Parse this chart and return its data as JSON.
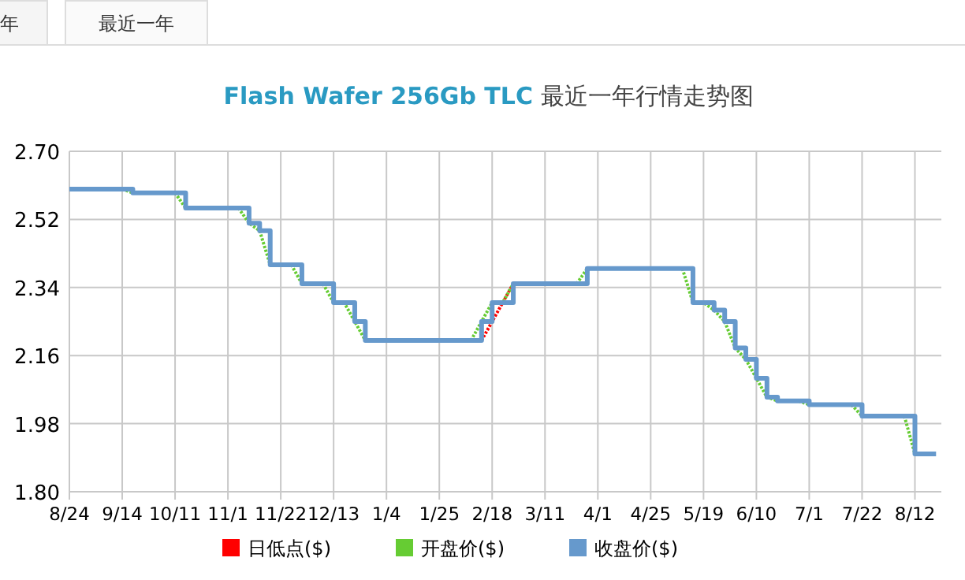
{
  "chart_data": {
    "type": "step",
    "title": "Flash Wafer 256Gb TLC 最近一年行情走势图",
    "annotations": [
      "年",
      "最近一年"
    ],
    "categories": [
      "8/24",
      null,
      null,
      null,
      null,
      "9/14",
      null,
      null,
      null,
      null,
      "10/11",
      null,
      null,
      null,
      null,
      "11/1",
      null,
      null,
      null,
      null,
      "11/22",
      null,
      null,
      null,
      null,
      "12/13",
      null,
      null,
      null,
      null,
      "1/4",
      null,
      null,
      null,
      null,
      "1/25",
      null,
      null,
      null,
      null,
      "2/18",
      null,
      null,
      null,
      null,
      "3/11",
      null,
      null,
      null,
      null,
      "4/1",
      null,
      null,
      null,
      null,
      "4/25",
      null,
      null,
      null,
      null,
      "5/19",
      null,
      null,
      null,
      null,
      "6/10",
      null,
      null,
      null,
      null,
      "7/1",
      null,
      null,
      null,
      null,
      "7/22",
      null,
      null,
      null,
      null,
      "8/12",
      null,
      null
    ],
    "ylim": [
      1.8,
      2.7
    ],
    "yticks": [
      {
        "value": 1.8,
        "label": "1.80"
      },
      {
        "value": 1.98,
        "label": "1.98"
      },
      {
        "value": 2.16,
        "label": "2.16"
      },
      {
        "value": 2.34,
        "label": "2.34"
      },
      {
        "value": 2.52,
        "label": "2.52"
      },
      {
        "value": 2.7,
        "label": "2.70"
      }
    ],
    "grid": true,
    "legend": "bottom",
    "marker": "none",
    "series": [
      {
        "name": "日低点($)",
        "color": "#ff0000",
        "type": "line",
        "line_style": "dotted",
        "values": [
          null,
          null,
          null,
          null,
          null,
          null,
          null,
          null,
          null,
          null,
          null,
          null,
          null,
          null,
          null,
          null,
          null,
          null,
          null,
          null,
          null,
          null,
          null,
          null,
          null,
          null,
          null,
          null,
          null,
          null,
          null,
          null,
          null,
          null,
          null,
          null,
          null,
          null,
          null,
          2.2,
          2.25,
          2.3,
          2.35,
          null,
          null,
          null,
          null,
          null,
          null,
          null,
          null,
          null,
          null,
          null,
          null,
          null,
          null,
          null,
          null,
          null,
          null,
          null,
          null,
          null,
          null,
          null,
          null,
          null,
          null,
          null,
          null,
          null,
          null,
          null,
          null,
          null,
          null,
          null,
          null,
          null,
          null,
          null,
          null
        ]
      },
      {
        "name": "开盘价($)",
        "color": "#66cc33",
        "type": "line",
        "line_style": "dotted",
        "values": [
          null,
          null,
          null,
          null,
          null,
          2.6,
          2.59,
          null,
          null,
          null,
          2.59,
          2.55,
          null,
          null,
          null,
          null,
          2.55,
          2.51,
          2.49,
          2.4,
          null,
          2.4,
          2.35,
          null,
          2.35,
          2.3,
          2.3,
          2.25,
          2.2,
          null,
          null,
          null,
          null,
          null,
          null,
          null,
          null,
          null,
          2.2,
          2.25,
          2.3,
          2.3,
          2.35,
          null,
          null,
          null,
          null,
          null,
          2.35,
          2.39,
          null,
          null,
          null,
          null,
          null,
          null,
          null,
          null,
          2.39,
          2.3,
          2.3,
          2.28,
          2.25,
          2.18,
          2.15,
          2.1,
          2.05,
          2.04,
          null,
          2.04,
          2.03,
          null,
          null,
          null,
          2.03,
          2.0,
          null,
          null,
          null,
          2.0,
          1.9,
          null,
          null
        ]
      },
      {
        "name": "收盘价($)",
        "color": "#6699cc",
        "line_style": "solid",
        "values": [
          2.6,
          2.6,
          2.6,
          2.6,
          2.6,
          2.6,
          2.59,
          2.59,
          2.59,
          2.59,
          2.59,
          2.55,
          2.55,
          2.55,
          2.55,
          2.55,
          2.55,
          2.51,
          2.49,
          2.4,
          2.4,
          2.4,
          2.35,
          2.35,
          2.35,
          2.3,
          2.3,
          2.25,
          2.2,
          2.2,
          2.2,
          2.2,
          2.2,
          2.2,
          2.2,
          2.2,
          2.2,
          2.2,
          2.2,
          2.25,
          2.3,
          2.3,
          2.35,
          2.35,
          2.35,
          2.35,
          2.35,
          2.35,
          2.35,
          2.39,
          2.39,
          2.39,
          2.39,
          2.39,
          2.39,
          2.39,
          2.39,
          2.39,
          2.39,
          2.3,
          2.3,
          2.28,
          2.25,
          2.18,
          2.15,
          2.1,
          2.05,
          2.04,
          2.04,
          2.04,
          2.03,
          2.03,
          2.03,
          2.03,
          2.03,
          2.0,
          2.0,
          2.0,
          2.0,
          2.0,
          1.9,
          1.9,
          1.9
        ]
      }
    ]
  }
}
